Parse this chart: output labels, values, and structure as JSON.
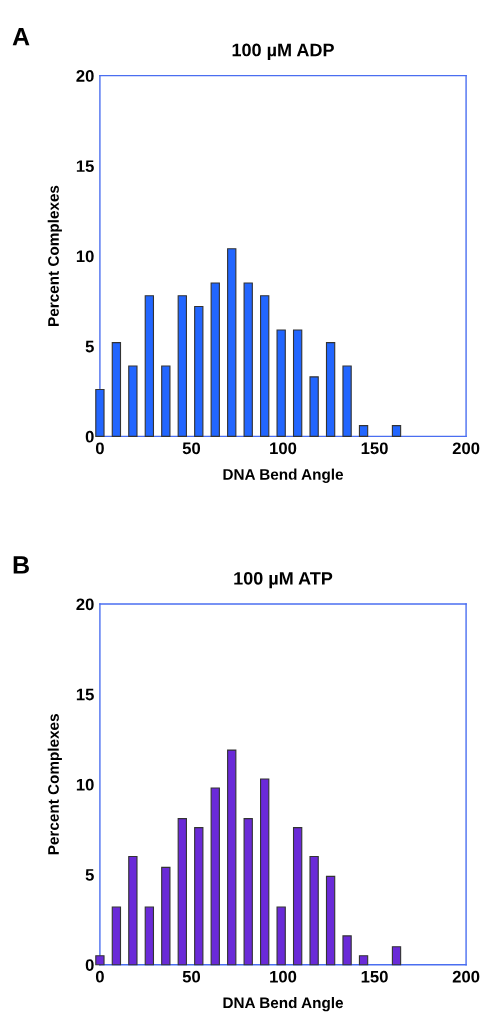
{
  "chart_data": [
    {
      "type": "bar",
      "title": "100 µM ADP",
      "xlabel": "DNA Bend Angle",
      "ylabel": "Percent Complexes",
      "annotations": [
        "A"
      ],
      "x": [
        0,
        9,
        18,
        27,
        36,
        45,
        54,
        63,
        72,
        81,
        90,
        99,
        108,
        117,
        126,
        135,
        144,
        153,
        162
      ],
      "values": [
        2.6,
        5.2,
        3.9,
        7.8,
        3.9,
        7.8,
        7.2,
        8.5,
        10.4,
        8.5,
        7.8,
        5.9,
        5.9,
        3.3,
        5.2,
        3.9,
        0.6,
        null,
        0.6
      ],
      "color": "#2266ff",
      "xlim": [
        0,
        200
      ],
      "xticks": [
        0,
        50,
        100,
        150,
        200
      ],
      "ylim": [
        0,
        20
      ],
      "yticks": [
        0,
        5,
        10,
        15,
        20
      ],
      "grid": false
    },
    {
      "type": "bar",
      "title": "100 µM ATP",
      "xlabel": "DNA Bend Angle",
      "ylabel": "Percent Complexes",
      "annotations": [
        "B"
      ],
      "x": [
        0,
        9,
        18,
        27,
        36,
        45,
        54,
        63,
        72,
        81,
        90,
        99,
        108,
        117,
        126,
        135,
        144,
        153,
        162
      ],
      "values": [
        0.5,
        3.2,
        6.0,
        3.2,
        5.4,
        8.1,
        7.6,
        9.8,
        11.9,
        8.1,
        10.3,
        3.2,
        7.6,
        6.0,
        4.9,
        1.6,
        0.5,
        null,
        1.0
      ],
      "color": "#6a2ad8",
      "xlim": [
        0,
        200
      ],
      "xticks": [
        0,
        50,
        100,
        150,
        200
      ],
      "ylim": [
        0,
        20
      ],
      "yticks": [
        0,
        5,
        10,
        15,
        20
      ],
      "grid": false
    }
  ]
}
